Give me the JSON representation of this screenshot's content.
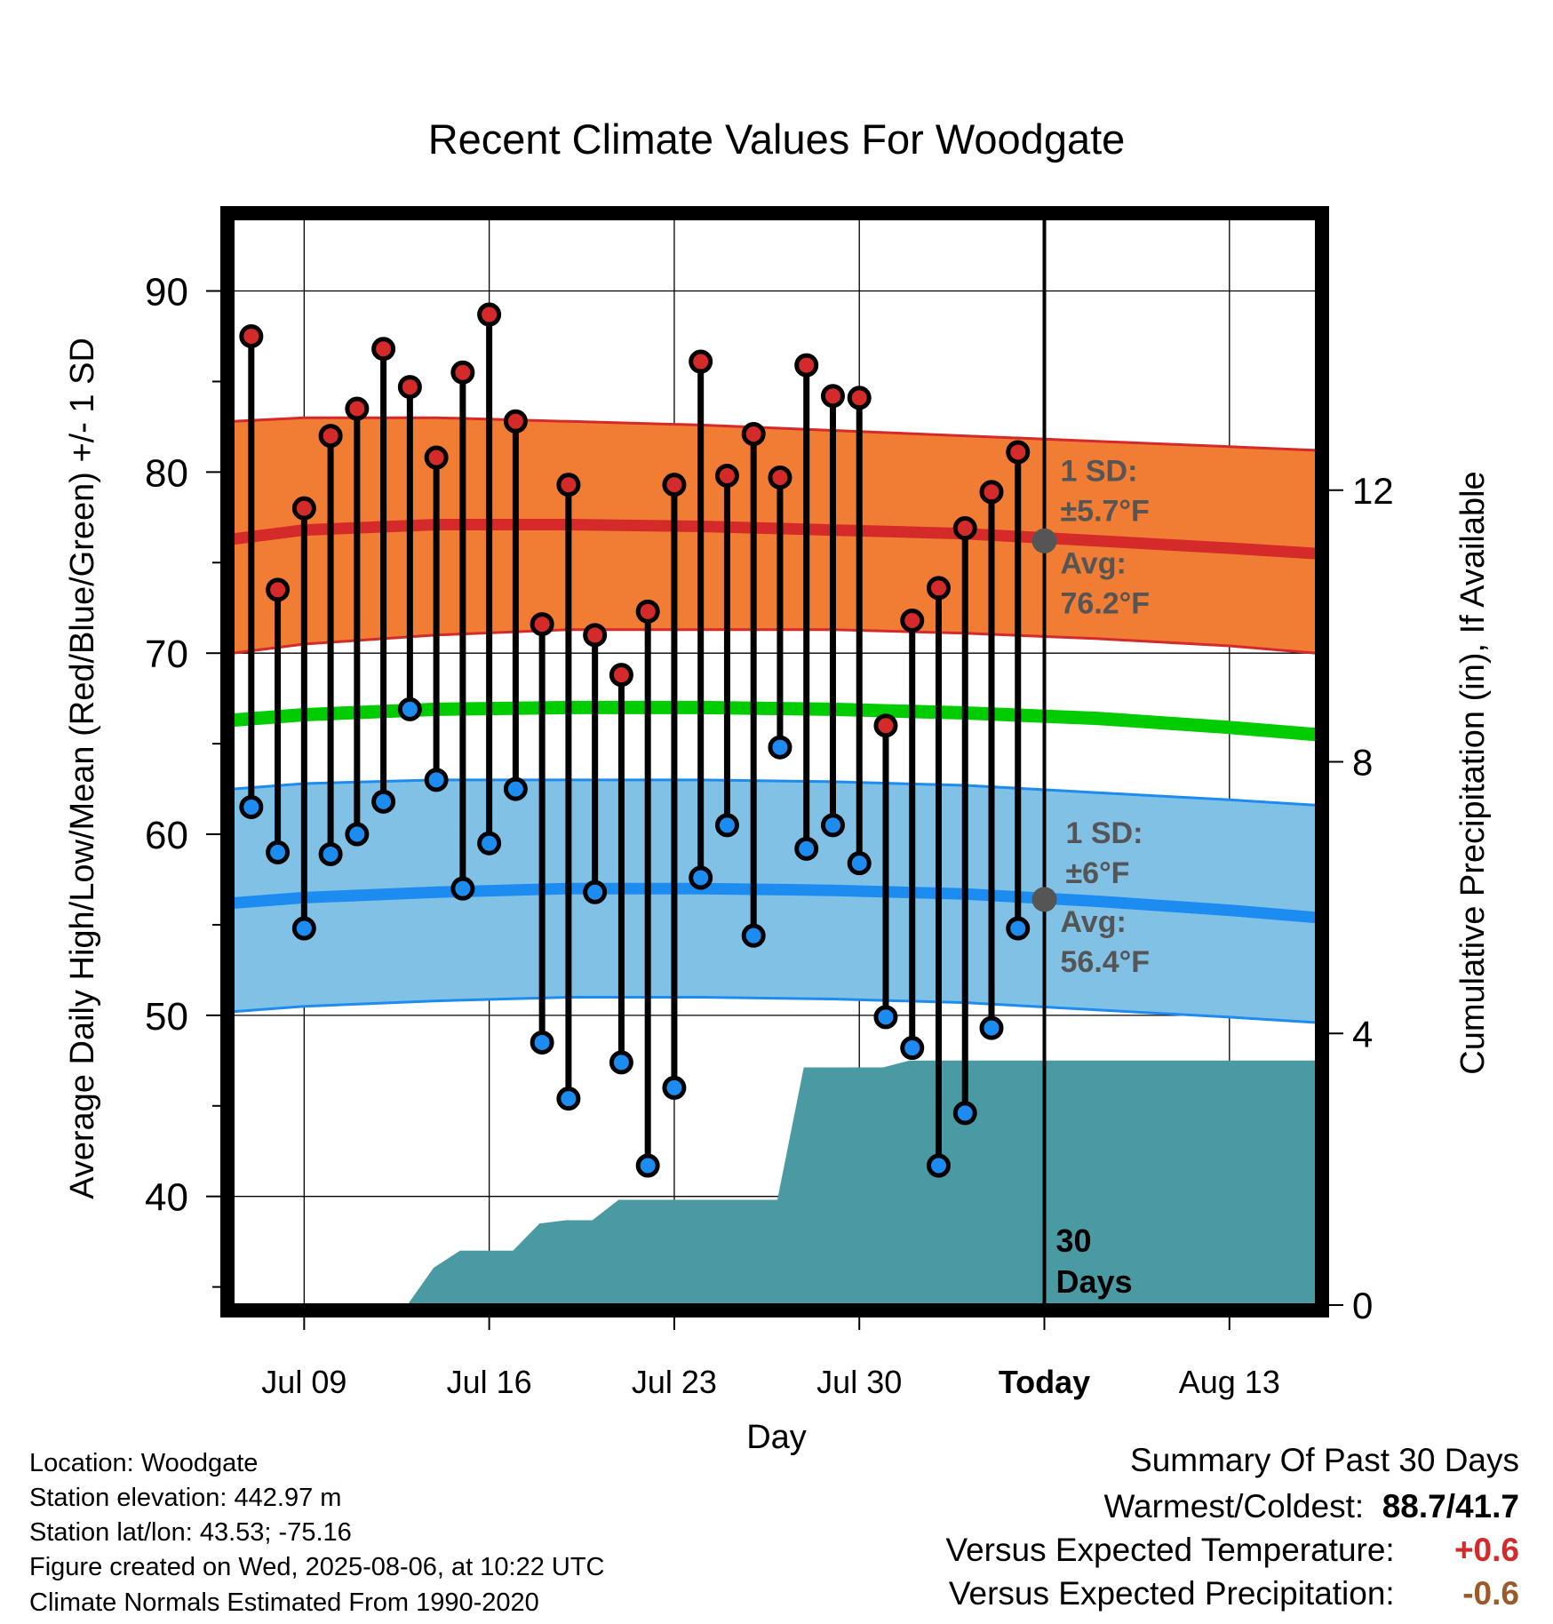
{
  "chart_data": {
    "type": "line",
    "title": "Recent Climate Values For Woodgate",
    "xlabel": "Day",
    "ylabel": "Average Daily High/Low/Mean (Red/Blue/Green) +/- 1 SD",
    "y2label": "Cumulative Precipitation (in), If Available",
    "ylim": [
      34,
      94
    ],
    "y2lim": [
      0,
      16
    ],
    "yticks": [
      40,
      50,
      60,
      70,
      80,
      90
    ],
    "y2ticks": [
      0,
      4,
      8,
      12
    ],
    "xlim": [
      -2.7,
      38.3
    ],
    "x_origin": "Jul 09",
    "xticks": [
      {
        "day": 0,
        "label": "Jul 09"
      },
      {
        "day": 7,
        "label": "Jul 16"
      },
      {
        "day": 14,
        "label": "Jul 23"
      },
      {
        "day": 21,
        "label": "Jul 30"
      },
      {
        "day": 28,
        "label": "Today"
      },
      {
        "day": 35,
        "label": "Aug 13"
      }
    ],
    "today_day": 28,
    "today_label": "30 Days",
    "grid": true,
    "colors": {
      "high_band": "#f07d33",
      "high_line": "#d42a2a",
      "low_band": "#82c1e6",
      "low_line": "#1d8cf0",
      "mean_line": "#00cc00",
      "precip": "#4a9aa3",
      "high_dot": "#d42a2a",
      "low_dot": "#1d8cf0",
      "annotation": "#555555"
    },
    "observed": {
      "days": [
        -2,
        -1,
        0,
        1,
        2,
        3,
        4,
        5,
        6,
        7,
        8,
        9,
        10,
        11,
        12,
        13,
        14,
        15,
        16,
        17,
        18,
        19,
        20,
        21,
        22,
        23,
        24,
        25,
        26,
        27
      ],
      "highs": [
        87.5,
        73.5,
        78,
        82,
        83.5,
        86.8,
        84.7,
        80.8,
        85.5,
        88.7,
        82.8,
        71.6,
        79.3,
        71,
        68.8,
        72.3,
        79.3,
        86.1,
        79.8,
        82.1,
        79.7,
        85.9,
        84.2,
        84.1,
        66,
        71.8,
        73.6,
        76.9,
        78.9,
        81.1
      ],
      "lows": [
        61.5,
        59,
        54.8,
        58.9,
        60,
        61.8,
        66.9,
        63,
        57,
        59.5,
        62.5,
        48.5,
        45.4,
        56.8,
        47.4,
        41.7,
        46,
        57.6,
        60.5,
        54.4,
        64.8,
        59.2,
        60.5,
        58.4,
        49.9,
        48.2,
        41.7,
        44.6,
        49.3,
        54.8
      ]
    },
    "normals": {
      "days": [
        -2.7,
        0,
        5,
        10,
        15,
        20,
        25,
        30,
        35,
        38.3
      ],
      "high_avg": [
        76.3,
        76.8,
        77.1,
        77.1,
        77,
        76.8,
        76.6,
        76.2,
        75.8,
        75.5
      ],
      "high_sd_upper": [
        82.8,
        83,
        83,
        82.8,
        82.6,
        82.3,
        82,
        81.7,
        81.4,
        81.2
      ],
      "high_sd_lower": [
        70,
        70.5,
        71,
        71.3,
        71.3,
        71.3,
        71.1,
        70.8,
        70.4,
        70
      ],
      "mean_avg": [
        66.3,
        66.6,
        66.9,
        67,
        67,
        66.9,
        66.7,
        66.4,
        65.9,
        65.5
      ],
      "low_avg": [
        56.2,
        56.5,
        56.8,
        57,
        57,
        56.9,
        56.7,
        56.3,
        55.8,
        55.4
      ],
      "low_sd_upper": [
        62.5,
        62.8,
        63,
        63,
        63,
        62.9,
        62.7,
        62.3,
        61.9,
        61.6
      ],
      "low_sd_lower": [
        50.2,
        50.5,
        50.8,
        51,
        51,
        50.9,
        50.7,
        50.3,
        49.9,
        49.6
      ]
    },
    "precip_cumulative": {
      "days": [
        -2.7,
        0.3,
        0.9,
        1.9,
        2.9,
        3.9,
        4.9,
        5.9,
        6.9,
        7.9,
        8.9,
        9.9,
        10.9,
        11.9,
        12.9,
        13.9,
        14.9,
        15.9,
        16.9,
        17.9,
        18.9,
        19.9,
        20.9,
        21.9,
        22.9,
        23.9,
        24.9,
        25.9,
        26.9,
        27.9,
        38.3
      ],
      "values": [
        0,
        0,
        0,
        0,
        0,
        0,
        0.55,
        0.8,
        0.8,
        0.8,
        1.2,
        1.25,
        1.25,
        1.55,
        1.55,
        1.55,
        1.55,
        1.55,
        1.55,
        1.55,
        3.5,
        3.5,
        3.5,
        3.5,
        3.6,
        3.6,
        3.6,
        3.6,
        3.6,
        3.6,
        3.6
      ]
    },
    "annotations": {
      "high_sd": [
        "1 SD:",
        "±5.7°F"
      ],
      "high_avg": [
        "Avg:",
        "76.2°F"
      ],
      "high_avg_value": 76.2,
      "low_sd": [
        "1 SD:",
        "±6°F"
      ],
      "low_avg": [
        "Avg:",
        "56.4°F"
      ],
      "low_avg_value": 56.4
    }
  },
  "station": {
    "location": "Location: Woodgate",
    "elevation": "Station elevation: 442.97 m",
    "latlon": "Station lat/lon: 43.53; -75.16",
    "created": "Figure created on Wed, 2025-08-06, at 10:22 UTC",
    "normals": "Climate Normals Estimated From 1990-2020"
  },
  "summary": {
    "heading": "Summary Of Past 30 Days",
    "warmest_coldest_label": "Warmest/Coldest:",
    "warmest_coldest_value": "88.7/41.7",
    "vs_temp_label": "Versus Expected Temperature:",
    "vs_temp_value": "+0.6",
    "vs_temp_color": "#d42a2a",
    "vs_precip_label": "Versus Expected Precipitation:",
    "vs_precip_value": "-0.6",
    "vs_precip_color": "#9a5a2a"
  }
}
